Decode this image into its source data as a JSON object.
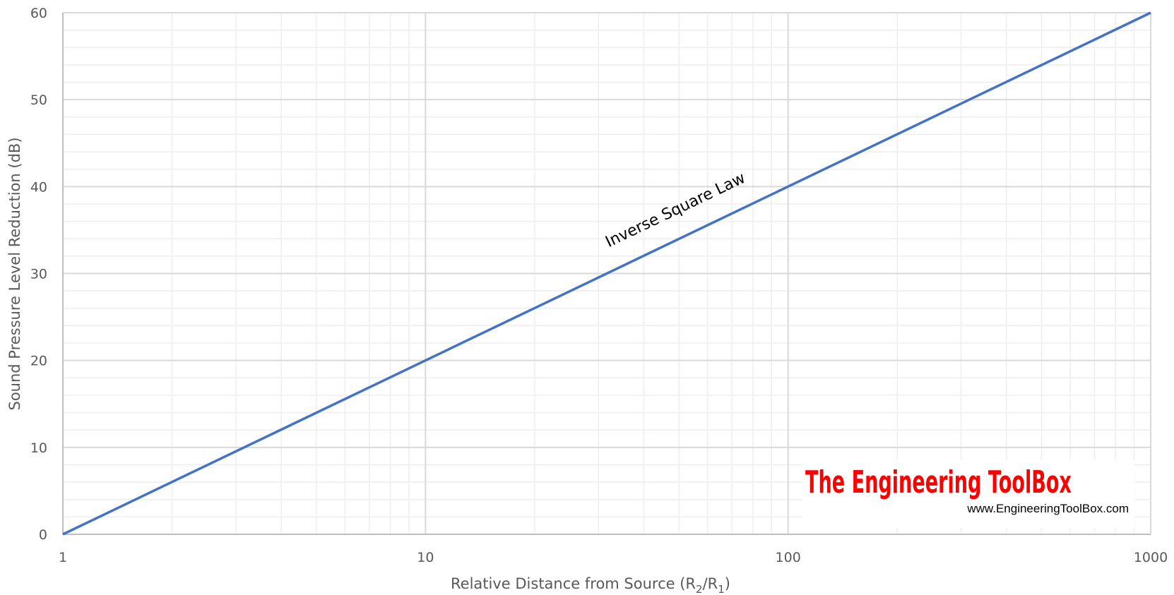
{
  "chart_data": {
    "type": "line",
    "x_scale": "log",
    "xlabel": {
      "main": "Relative Distance from Source (R",
      "sub1": "2",
      "mid": "/R",
      "sub2": "1",
      "end": ")"
    },
    "ylabel": "Sound Pressure Level Reduction (dB)",
    "xlim": [
      1,
      1000
    ],
    "ylim": [
      0,
      60
    ],
    "x_major_ticks": [
      1,
      10,
      100,
      1000
    ],
    "x_tick_labels": [
      "1",
      "10",
      "100",
      "1000"
    ],
    "y_major_ticks": [
      0,
      10,
      20,
      30,
      40,
      50,
      60
    ],
    "y_tick_labels": [
      "0",
      "10",
      "20",
      "30",
      "40",
      "50",
      "60"
    ],
    "y_minor_step": 2,
    "grid": true,
    "series": [
      {
        "x": [
          1,
          10,
          100,
          1000
        ],
        "y": [
          0,
          20,
          40,
          60
        ],
        "color": "#4472c4"
      }
    ],
    "annotations": [
      {
        "text": "Inverse Square Law",
        "x": 32,
        "y": 33
      }
    ]
  },
  "watermark": {
    "title": "The Engineering ToolBox",
    "url": "www.EngineeringToolBox.com",
    "color": "#ff0000"
  },
  "colors": {
    "major_grid": "#d9d9d9",
    "minor_grid": "#eeeeee",
    "axis": "#bfbfbf",
    "line": "#4472c4"
  }
}
